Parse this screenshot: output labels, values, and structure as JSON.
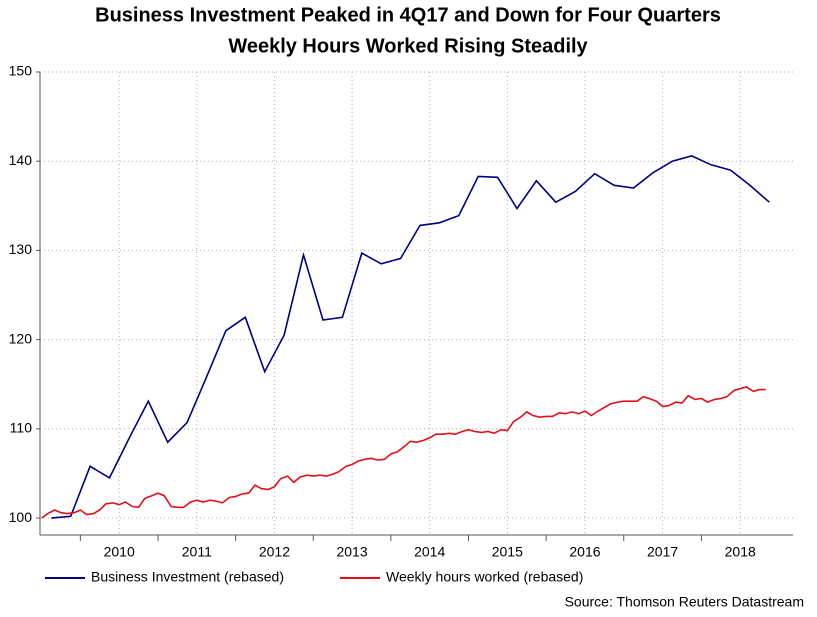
{
  "chart_data": {
    "type": "line",
    "title": "Business Investment Peaked in 4Q17 and Down for Four Quarters",
    "subtitle": "Weekly Hours Worked Rising Steadily",
    "source": "Source: Thomson Reuters Datastream",
    "xlim": [
      2009.48,
      2019.18
    ],
    "xticks": [
      {
        "value": 2010.5,
        "label": "2010"
      },
      {
        "value": 2011.5,
        "label": "2011"
      },
      {
        "value": 2012.5,
        "label": "2012"
      },
      {
        "value": 2013.5,
        "label": "2013"
      },
      {
        "value": 2014.5,
        "label": "2014"
      },
      {
        "value": 2015.5,
        "label": "2015"
      },
      {
        "value": 2016.5,
        "label": "2016"
      },
      {
        "value": 2017.5,
        "label": "2017"
      },
      {
        "value": 2018.5,
        "label": "2018"
      }
    ],
    "ylim": [
      98.1,
      150
    ],
    "yticks": [
      100,
      110,
      120,
      130,
      140,
      150
    ],
    "grid": true,
    "series": [
      {
        "name": "Business Investment (rebased)",
        "color": "#000080",
        "x": [
          2009.625,
          2009.875,
          2010.125,
          2010.375,
          2010.625,
          2010.875,
          2011.125,
          2011.375,
          2011.625,
          2011.875,
          2012.125,
          2012.375,
          2012.625,
          2012.875,
          2013.125,
          2013.375,
          2013.625,
          2013.875,
          2014.125,
          2014.375,
          2014.625,
          2014.875,
          2015.125,
          2015.375,
          2015.625,
          2015.875,
          2016.125,
          2016.375,
          2016.625,
          2016.875,
          2017.125,
          2017.375,
          2017.625,
          2017.875,
          2018.125,
          2018.375,
          2018.625,
          2018.875
        ],
        "values": [
          100.0,
          100.2,
          105.8,
          104.5,
          108.9,
          113.1,
          108.5,
          110.7,
          115.8,
          121.0,
          122.5,
          116.4,
          120.5,
          129.5,
          122.2,
          122.5,
          129.7,
          128.5,
          129.1,
          132.8,
          133.1,
          133.9,
          138.3,
          138.2,
          134.7,
          137.8,
          135.4,
          136.6,
          138.6,
          137.3,
          137.0,
          138.7,
          140.0,
          140.6,
          139.6,
          139.0,
          137.3,
          135.4
        ]
      },
      {
        "name": "Weekly hours worked (rebased)",
        "color": "#e0101c",
        "x": [
          2009.5,
          2009.58,
          2009.67,
          2009.75,
          2009.83,
          2009.92,
          2010.0,
          2010.08,
          2010.17,
          2010.25,
          2010.33,
          2010.42,
          2010.5,
          2010.58,
          2010.67,
          2010.75,
          2010.83,
          2010.92,
          2011.0,
          2011.08,
          2011.17,
          2011.25,
          2011.33,
          2011.42,
          2011.5,
          2011.58,
          2011.67,
          2011.75,
          2011.83,
          2011.92,
          2012.0,
          2012.08,
          2012.17,
          2012.25,
          2012.33,
          2012.42,
          2012.5,
          2012.58,
          2012.67,
          2012.75,
          2012.83,
          2012.92,
          2013.0,
          2013.08,
          2013.17,
          2013.25,
          2013.33,
          2013.42,
          2013.5,
          2013.58,
          2013.67,
          2013.75,
          2013.83,
          2013.92,
          2014.0,
          2014.08,
          2014.17,
          2014.25,
          2014.33,
          2014.42,
          2014.5,
          2014.58,
          2014.67,
          2014.75,
          2014.83,
          2014.92,
          2015.0,
          2015.08,
          2015.17,
          2015.25,
          2015.33,
          2015.42,
          2015.5,
          2015.58,
          2015.67,
          2015.75,
          2015.83,
          2015.92,
          2016.0,
          2016.08,
          2016.17,
          2016.25,
          2016.33,
          2016.42,
          2016.5,
          2016.58,
          2016.67,
          2016.75,
          2016.83,
          2016.92,
          2017.0,
          2017.08,
          2017.17,
          2017.25,
          2017.33,
          2017.42,
          2017.5,
          2017.58,
          2017.67,
          2017.75,
          2017.83,
          2017.92,
          2018.0,
          2018.08,
          2018.17,
          2018.25,
          2018.33,
          2018.42,
          2018.5,
          2018.58,
          2018.67,
          2018.75,
          2018.83
        ],
        "values": [
          100.0,
          100.5,
          100.9,
          100.6,
          100.5,
          100.6,
          100.9,
          100.4,
          100.5,
          100.9,
          101.6,
          101.7,
          101.5,
          101.8,
          101.3,
          101.2,
          102.2,
          102.5,
          102.8,
          102.5,
          101.3,
          101.2,
          101.2,
          101.8,
          102.0,
          101.8,
          102.0,
          101.9,
          101.7,
          102.3,
          102.4,
          102.7,
          102.8,
          103.7,
          103.3,
          103.2,
          103.5,
          104.4,
          104.7,
          104.0,
          104.6,
          104.8,
          104.7,
          104.8,
          104.7,
          104.9,
          105.2,
          105.8,
          106.0,
          106.4,
          106.6,
          106.7,
          106.5,
          106.6,
          107.2,
          107.4,
          108.0,
          108.6,
          108.5,
          108.7,
          109.0,
          109.4,
          109.4,
          109.5,
          109.4,
          109.7,
          109.9,
          109.7,
          109.6,
          109.7,
          109.5,
          109.9,
          109.8,
          110.8,
          111.3,
          111.9,
          111.5,
          111.3,
          111.4,
          111.4,
          111.8,
          111.7,
          111.9,
          111.7,
          112.0,
          111.5,
          112.0,
          112.4,
          112.8,
          113.0,
          113.1,
          113.1,
          113.1,
          113.6,
          113.4,
          113.1,
          112.5,
          112.6,
          113.0,
          112.9,
          113.7,
          113.3,
          113.4,
          113.0,
          113.3,
          113.4,
          113.6,
          114.3,
          114.5,
          114.7,
          114.2,
          114.4,
          114.4
        ]
      }
    ]
  }
}
